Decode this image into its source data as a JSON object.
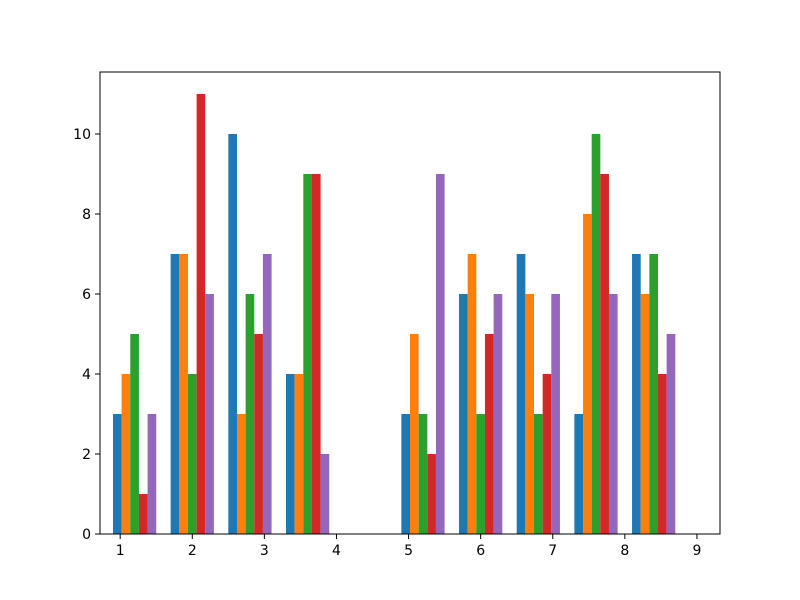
{
  "chart_data": {
    "type": "bar",
    "title": "",
    "xlabel": "",
    "ylabel": "",
    "xlim": [
      0.72,
      9.32
    ],
    "ylim": [
      0,
      11.55
    ],
    "grid": false,
    "legend": "none",
    "x_ticks": [
      1,
      2,
      3,
      4,
      5,
      6,
      7,
      8,
      9
    ],
    "y_ticks": [
      0,
      2,
      4,
      6,
      8,
      10
    ],
    "group_positions": [
      1.2,
      2.0,
      2.8,
      3.6,
      5.2,
      6.0,
      6.8,
      7.6,
      8.4
    ],
    "bar_width": 0.12,
    "series": [
      {
        "color": "#1f77b4",
        "values": [
          3,
          7,
          10,
          4,
          3,
          6,
          7,
          3,
          7
        ]
      },
      {
        "color": "#ff7f0e",
        "values": [
          4,
          7,
          3,
          4,
          5,
          7,
          6,
          8,
          6
        ]
      },
      {
        "color": "#2ca02c",
        "values": [
          5,
          4,
          6,
          9,
          3,
          3,
          3,
          10,
          7
        ]
      },
      {
        "color": "#d62728",
        "values": [
          1,
          11,
          5,
          9,
          2,
          5,
          4,
          9,
          4
        ]
      },
      {
        "color": "#9467bd",
        "values": [
          3,
          6,
          7,
          2,
          9,
          6,
          6,
          6,
          5
        ]
      }
    ]
  }
}
